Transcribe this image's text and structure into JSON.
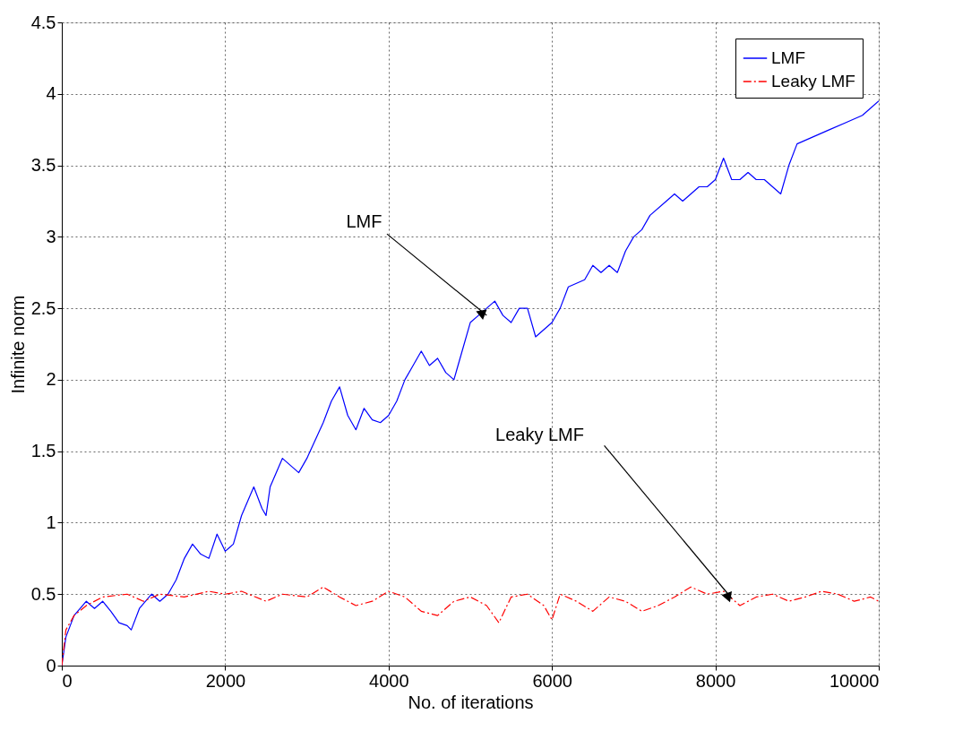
{
  "chart_data": {
    "type": "line",
    "xlabel": "No. of iterations",
    "ylabel": "Infinite norm",
    "xlim": [
      0,
      10000
    ],
    "xticks": [
      0,
      2000,
      4000,
      6000,
      8000,
      10000
    ],
    "ylim": [
      0,
      4.5
    ],
    "yticks": [
      0,
      0.5,
      1,
      1.5,
      2,
      2.5,
      3,
      3.5,
      4,
      4.5
    ],
    "grid": true,
    "legend": "top right",
    "annotations": [
      {
        "text": "LMF",
        "x": 5200,
        "y": 2.45
      },
      {
        "text": "Leaky LMF",
        "x": 8200,
        "y": 0.47
      }
    ],
    "series": [
      {
        "name": "LMF",
        "color": "#0000ff",
        "line_style": "solid",
        "x": [
          0,
          50,
          150,
          300,
          400,
          500,
          600,
          700,
          800,
          850,
          950,
          1100,
          1200,
          1300,
          1400,
          1500,
          1600,
          1700,
          1800,
          1900,
          2000,
          2100,
          2200,
          2350,
          2450,
          2500,
          2550,
          2700,
          2800,
          2900,
          3000,
          3200,
          3300,
          3400,
          3500,
          3600,
          3700,
          3800,
          3900,
          4000,
          4100,
          4200,
          4300,
          4400,
          4500,
          4600,
          4700,
          4800,
          4900,
          5000,
          5100,
          5200,
          5300,
          5400,
          5500,
          5600,
          5700,
          5800,
          5900,
          6000,
          6100,
          6200,
          6400,
          6500,
          6600,
          6700,
          6800,
          6900,
          7000,
          7100,
          7200,
          7400,
          7500,
          7600,
          7800,
          7900,
          8000,
          8100,
          8200,
          8300,
          8400,
          8500,
          8600,
          8700,
          8800,
          8900,
          9000,
          9200,
          9400,
          9600,
          9800,
          10000
        ],
        "values": [
          0,
          0.2,
          0.35,
          0.45,
          0.4,
          0.45,
          0.38,
          0.3,
          0.28,
          0.25,
          0.4,
          0.5,
          0.45,
          0.5,
          0.6,
          0.75,
          0.85,
          0.78,
          0.75,
          0.92,
          0.8,
          0.85,
          1.05,
          1.25,
          1.1,
          1.05,
          1.25,
          1.45,
          1.4,
          1.35,
          1.45,
          1.7,
          1.85,
          1.95,
          1.75,
          1.65,
          1.8,
          1.72,
          1.7,
          1.75,
          1.85,
          2.0,
          2.1,
          2.2,
          2.1,
          2.15,
          2.05,
          2.0,
          2.2,
          2.4,
          2.45,
          2.5,
          2.55,
          2.45,
          2.4,
          2.5,
          2.5,
          2.3,
          2.35,
          2.4,
          2.5,
          2.65,
          2.7,
          2.8,
          2.75,
          2.8,
          2.75,
          2.9,
          3.0,
          3.05,
          3.15,
          3.25,
          3.3,
          3.25,
          3.35,
          3.35,
          3.4,
          3.55,
          3.4,
          3.4,
          3.45,
          3.4,
          3.4,
          3.35,
          3.3,
          3.5,
          3.65,
          3.7,
          3.75,
          3.8,
          3.85,
          3.95
        ]
      },
      {
        "name": "Leaky LMF",
        "color": "#ff0000",
        "line_style": "dashed",
        "x": [
          0,
          50,
          150,
          300,
          500,
          800,
          1000,
          1200,
          1500,
          1800,
          2000,
          2200,
          2500,
          2700,
          3000,
          3200,
          3400,
          3600,
          3800,
          4000,
          4200,
          4400,
          4600,
          4800,
          5000,
          5200,
          5350,
          5500,
          5700,
          5900,
          6000,
          6100,
          6300,
          6500,
          6700,
          6900,
          7100,
          7300,
          7500,
          7700,
          7900,
          8100,
          8300,
          8500,
          8700,
          8900,
          9100,
          9300,
          9500,
          9700,
          9900,
          10000
        ],
        "values": [
          0,
          0.25,
          0.35,
          0.42,
          0.48,
          0.5,
          0.45,
          0.5,
          0.48,
          0.52,
          0.5,
          0.52,
          0.45,
          0.5,
          0.48,
          0.55,
          0.48,
          0.42,
          0.45,
          0.52,
          0.48,
          0.38,
          0.35,
          0.45,
          0.48,
          0.42,
          0.3,
          0.48,
          0.5,
          0.42,
          0.32,
          0.5,
          0.45,
          0.38,
          0.48,
          0.45,
          0.38,
          0.42,
          0.48,
          0.55,
          0.5,
          0.52,
          0.42,
          0.48,
          0.5,
          0.45,
          0.48,
          0.52,
          0.5,
          0.45,
          0.48,
          0.45
        ]
      }
    ]
  }
}
